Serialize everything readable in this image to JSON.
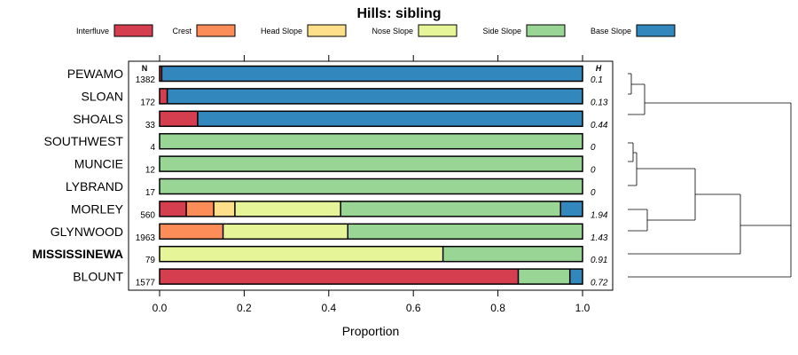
{
  "chart_data": {
    "type": "bar",
    "stacked": true,
    "orientation": "horizontal",
    "title": "Hills: sibling",
    "xlabel": "Proportion",
    "xlim": [
      0,
      1
    ],
    "x_ticks": [
      0,
      0.2,
      0.4,
      0.6,
      0.8,
      1
    ],
    "x_tick_labels": [
      "0.0",
      "0.2",
      "0.4",
      "0.6",
      "0.8",
      "1.0"
    ],
    "n_header": "N",
    "h_header": "H",
    "legend_position": "top",
    "series": [
      {
        "name": "Interfluve",
        "color": "#D53E4F"
      },
      {
        "name": "Crest",
        "color": "#FC8D59"
      },
      {
        "name": "Head Slope",
        "color": "#FEE08B"
      },
      {
        "name": "Nose Slope",
        "color": "#E6F598"
      },
      {
        "name": "Side Slope",
        "color": "#99D594"
      },
      {
        "name": "Base Slope",
        "color": "#3288BD"
      }
    ],
    "categories": [
      {
        "label": "PEWAMO",
        "n": "1382",
        "h": "0.1",
        "bold": false,
        "values": [
          0.005,
          0,
          0,
          0,
          0,
          0.995
        ]
      },
      {
        "label": "SLOAN",
        "n": "172",
        "h": "0.13",
        "bold": false,
        "values": [
          0.018,
          0,
          0,
          0,
          0,
          0.982
        ]
      },
      {
        "label": "SHOALS",
        "n": "33",
        "h": "0.44",
        "bold": false,
        "values": [
          0.09,
          0,
          0,
          0,
          0,
          0.91
        ]
      },
      {
        "label": "SOUTHWEST",
        "n": "4",
        "h": "0",
        "bold": false,
        "values": [
          0,
          0,
          0,
          0,
          1,
          0
        ]
      },
      {
        "label": "MUNCIE",
        "n": "12",
        "h": "0",
        "bold": false,
        "values": [
          0,
          0,
          0,
          0,
          1,
          0
        ]
      },
      {
        "label": "LYBRAND",
        "n": "17",
        "h": "0",
        "bold": false,
        "values": [
          0,
          0,
          0,
          0,
          1,
          0
        ]
      },
      {
        "label": "MORLEY",
        "n": "560",
        "h": "1.94",
        "bold": false,
        "values": [
          0.063,
          0.065,
          0.05,
          0.25,
          0.52,
          0.052
        ]
      },
      {
        "label": "GLYNWOOD",
        "n": "1963",
        "h": "1.43",
        "bold": false,
        "values": [
          0,
          0.15,
          0,
          0.295,
          0.555,
          0
        ]
      },
      {
        "label": "MISSISSINEWA",
        "n": "79",
        "h": "0.91",
        "bold": true,
        "values": [
          0,
          0,
          0,
          0.67,
          0.33,
          0
        ]
      },
      {
        "label": "BLOUNT",
        "n": "1577",
        "h": "0.72",
        "bold": false,
        "values": [
          0.848,
          0,
          0,
          0,
          0.122,
          0.03
        ]
      }
    ]
  }
}
